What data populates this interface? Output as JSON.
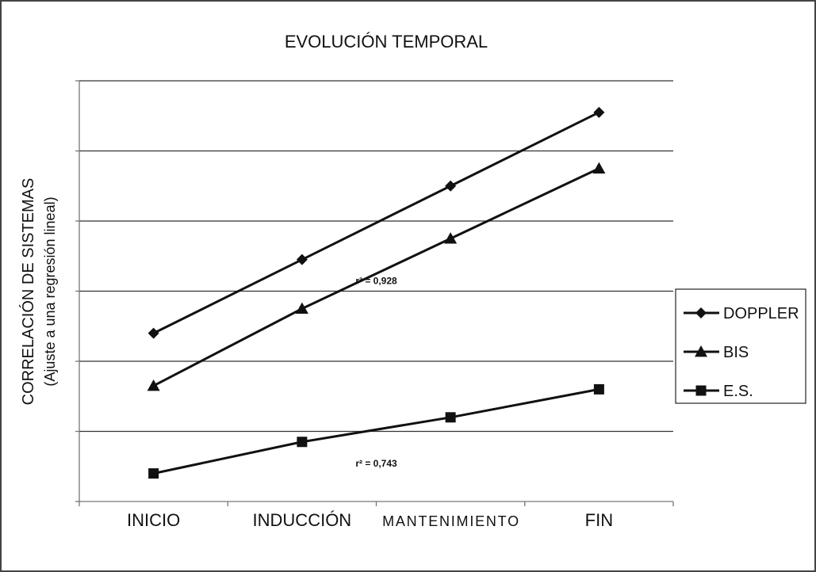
{
  "chart_data": {
    "type": "line",
    "title": "EVOLUCIÓN TEMPORAL",
    "ylabel": "CORRELACIÓN DE SISTEMAS",
    "ylabel_sub": "(Ajuste a una regresión lineal)",
    "xlabel": "",
    "categories": [
      "INICIO",
      "INDUCCIÓN",
      "MANTENIMIENTO",
      "FIN"
    ],
    "ylim": [
      0,
      6
    ],
    "grid": true,
    "legend_position": "right",
    "series": [
      {
        "name": "DOPPLER",
        "marker": "diamond",
        "values": [
          2.4,
          3.45,
          4.5,
          5.55
        ]
      },
      {
        "name": "BIS",
        "marker": "triangle",
        "values": [
          1.65,
          2.75,
          3.75,
          4.75
        ]
      },
      {
        "name": "E.S.",
        "marker": "square",
        "values": [
          0.4,
          0.85,
          1.2,
          1.6
        ]
      }
    ],
    "annotations": [
      {
        "text": "r² = 0,928",
        "x": 2.0,
        "y": 3.1
      },
      {
        "text": "r² = 0,743",
        "x": 2.0,
        "y": 0.5
      }
    ],
    "colors": {
      "line": "#111111",
      "grid": "#333333",
      "axis": "#777777"
    }
  }
}
